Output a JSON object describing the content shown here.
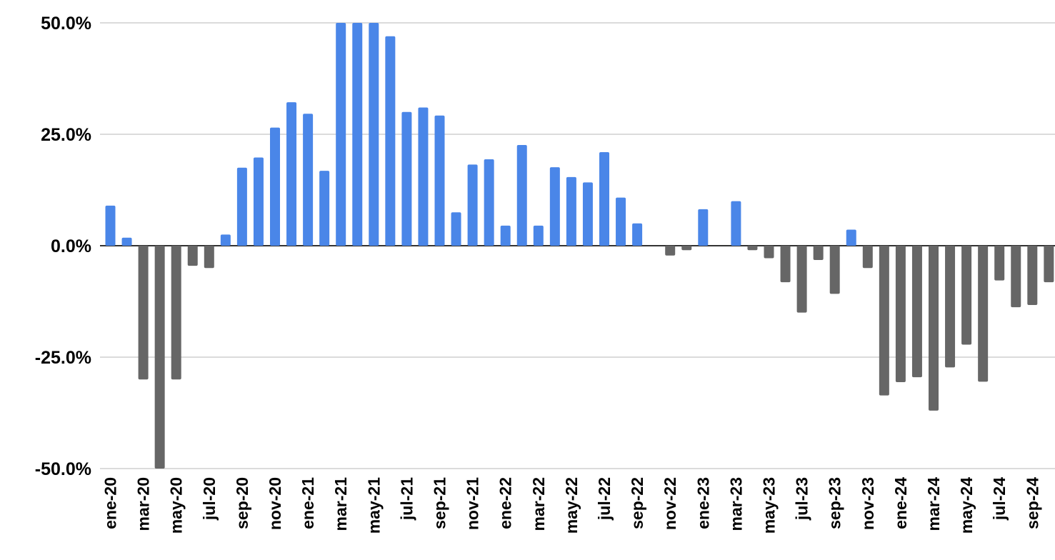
{
  "colors": {
    "positive": "#4a86e8",
    "negative": "#666666",
    "grid": "#cfcfcf"
  },
  "chart_data": {
    "type": "bar",
    "title": "",
    "xlabel": "",
    "ylabel": "",
    "ylim": [
      -50,
      50
    ],
    "grid": true,
    "yticks": [
      50,
      25,
      0,
      -25,
      -50
    ],
    "ytick_labels": [
      "50.0%",
      "25.0%",
      "0.0%",
      "-25.0%",
      "-50.0%"
    ],
    "categories": [
      "ene-20",
      "feb-20",
      "mar-20",
      "abr-20",
      "may-20",
      "jun-20",
      "jul-20",
      "ago-20",
      "sep-20",
      "oct-20",
      "nov-20",
      "dic-20",
      "ene-21",
      "feb-21",
      "mar-21",
      "abr-21",
      "may-21",
      "jun-21",
      "jul-21",
      "ago-21",
      "sep-21",
      "oct-21",
      "nov-21",
      "dic-21",
      "ene-22",
      "feb-22",
      "mar-22",
      "abr-22",
      "may-22",
      "jun-22",
      "jul-22",
      "ago-22",
      "sep-22",
      "oct-22",
      "nov-22",
      "dic-22",
      "ene-23",
      "feb-23",
      "mar-23",
      "abr-23",
      "may-23",
      "jun-23",
      "jul-23",
      "ago-23",
      "sep-23",
      "oct-23",
      "nov-23",
      "dic-23",
      "ene-24",
      "feb-24",
      "mar-24",
      "abr-24",
      "may-24",
      "jun-24",
      "jul-24",
      "ago-24",
      "sep-24",
      "oct-24"
    ],
    "xtick_labels": [
      "ene-20",
      "mar-20",
      "may-20",
      "jul-20",
      "sep-20",
      "nov-20",
      "ene-21",
      "mar-21",
      "may-21",
      "jul-21",
      "sep-21",
      "nov-21",
      "ene-22",
      "mar-22",
      "may-22",
      "jul-22",
      "sep-22",
      "nov-22",
      "ene-23",
      "mar-23",
      "may-23",
      "jul-23",
      "sep-23",
      "nov-23",
      "ene-24",
      "mar-24",
      "may-24",
      "jul-24",
      "sep-24"
    ],
    "values": [
      9.0,
      1.8,
      -30.0,
      -50.0,
      -30.0,
      -4.5,
      -5.0,
      2.5,
      17.5,
      19.8,
      26.5,
      32.2,
      29.6,
      16.8,
      50.0,
      50.0,
      50.0,
      47.0,
      30.0,
      31.0,
      29.2,
      7.5,
      18.2,
      19.4,
      4.5,
      22.6,
      4.5,
      17.6,
      15.4,
      14.2,
      21.0,
      10.8,
      5.0,
      0.0,
      -2.2,
      -1.0,
      8.2,
      0.0,
      10.0,
      -1.0,
      -2.8,
      -8.2,
      -15.0,
      -3.2,
      -10.8,
      3.6,
      -5.0,
      -33.6,
      -30.6,
      -29.5,
      -37.0,
      -27.3,
      -22.2,
      -30.5,
      -7.8,
      -13.8,
      -13.3,
      -8.2
    ]
  }
}
